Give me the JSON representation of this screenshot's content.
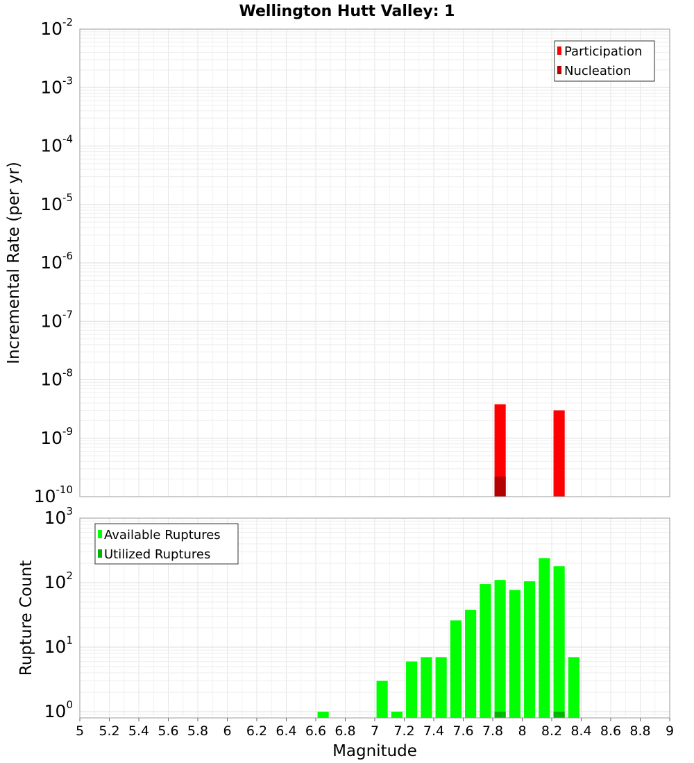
{
  "chart_data": [
    {
      "type": "bar",
      "panel": "top",
      "title": "Wellington Hutt Valley: 1",
      "ylabel": "Incremental Rate (per yr)",
      "xlim": [
        5,
        9
      ],
      "ylim": [
        1e-10,
        0.01
      ],
      "yscale": "log",
      "grid": true,
      "legend_position": "top-right",
      "bar_width": 0.1,
      "series": [
        {
          "name": "Participation",
          "color": "#ff0000",
          "points": [
            {
              "x": 7.85,
              "y": 3.8e-09
            },
            {
              "x": 8.25,
              "y": 3e-09
            }
          ]
        },
        {
          "name": "Nucleation",
          "color": "#b30000",
          "points": [
            {
              "x": 7.85,
              "y": 2.2e-10
            }
          ]
        }
      ]
    },
    {
      "type": "bar",
      "panel": "bottom",
      "xlabel": "Magnitude",
      "ylabel": "Rupture Count",
      "xlim": [
        5,
        9
      ],
      "ylim": [
        0.8,
        1000
      ],
      "yscale": "log",
      "grid": true,
      "legend_position": "top-left",
      "bar_width": 0.1,
      "series": [
        {
          "name": "Available Ruptures",
          "color": "#00ff00",
          "points": [
            {
              "x": 6.65,
              "y": 1
            },
            {
              "x": 7.05,
              "y": 3
            },
            {
              "x": 7.15,
              "y": 1
            },
            {
              "x": 7.25,
              "y": 6
            },
            {
              "x": 7.35,
              "y": 7
            },
            {
              "x": 7.45,
              "y": 7
            },
            {
              "x": 7.55,
              "y": 26
            },
            {
              "x": 7.65,
              "y": 38
            },
            {
              "x": 7.75,
              "y": 95
            },
            {
              "x": 7.85,
              "y": 110
            },
            {
              "x": 7.95,
              "y": 77
            },
            {
              "x": 8.05,
              "y": 105
            },
            {
              "x": 8.15,
              "y": 240
            },
            {
              "x": 8.25,
              "y": 180
            },
            {
              "x": 8.35,
              "y": 7
            }
          ]
        },
        {
          "name": "Utilized Ruptures",
          "color": "#00b300",
          "points": [
            {
              "x": 7.85,
              "y": 1
            },
            {
              "x": 8.25,
              "y": 1
            }
          ]
        }
      ]
    }
  ],
  "x_ticks": [
    "5",
    "5.2",
    "5.4",
    "5.6",
    "5.8",
    "6",
    "6.2",
    "6.4",
    "6.6",
    "6.8",
    "7",
    "7.2",
    "7.4",
    "7.6",
    "7.8",
    "8",
    "8.2",
    "8.4",
    "8.6",
    "8.8",
    "9"
  ],
  "top_y_ticks": [
    {
      "base": "10",
      "exp": "-10"
    },
    {
      "base": "10",
      "exp": "-9"
    },
    {
      "base": "10",
      "exp": "-8"
    },
    {
      "base": "10",
      "exp": "-7"
    },
    {
      "base": "10",
      "exp": "-6"
    },
    {
      "base": "10",
      "exp": "-5"
    },
    {
      "base": "10",
      "exp": "-4"
    },
    {
      "base": "10",
      "exp": "-3"
    },
    {
      "base": "10",
      "exp": "-2"
    }
  ],
  "bottom_y_ticks": [
    {
      "base": "10",
      "exp": "0"
    },
    {
      "base": "10",
      "exp": "1"
    },
    {
      "base": "10",
      "exp": "2"
    },
    {
      "base": "10",
      "exp": "3"
    }
  ]
}
